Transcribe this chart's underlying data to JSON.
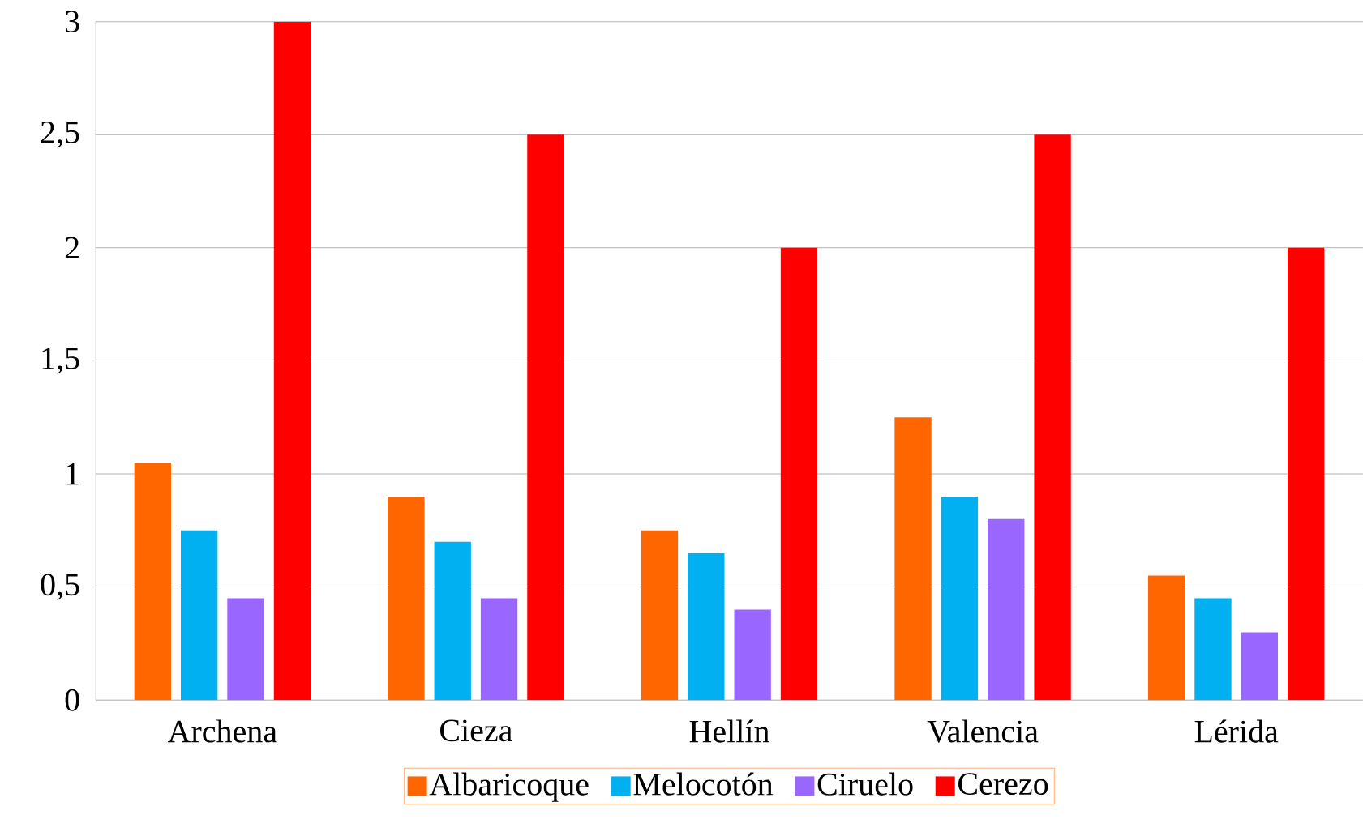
{
  "chart_data": {
    "type": "bar",
    "categories": [
      "Archena",
      "Cieza",
      "Hellín",
      "Valencia",
      "Lérida"
    ],
    "series": [
      {
        "name": "Albaricoque",
        "color": "#ff6600",
        "values": [
          1.05,
          0.9,
          0.75,
          1.25,
          0.55
        ]
      },
      {
        "name": "Melocotón",
        "color": "#00b0f0",
        "values": [
          0.75,
          0.7,
          0.65,
          0.9,
          0.45
        ]
      },
      {
        "name": "Ciruelo",
        "color": "#9966ff",
        "values": [
          0.45,
          0.45,
          0.4,
          0.8,
          0.3
        ]
      },
      {
        "name": "Cerezo",
        "color": "#ff0000",
        "values": [
          3,
          2.5,
          2,
          2.5,
          2
        ]
      }
    ],
    "ylim": [
      0,
      3
    ],
    "yticks": [
      0,
      {
        "value": 0.5,
        "label": "0,5"
      },
      1,
      {
        "value": 1.5,
        "label": "1,5"
      },
      2,
      {
        "value": 2.5,
        "label": "2,5"
      },
      3
    ],
    "grid": "y",
    "legend": "bottom"
  }
}
